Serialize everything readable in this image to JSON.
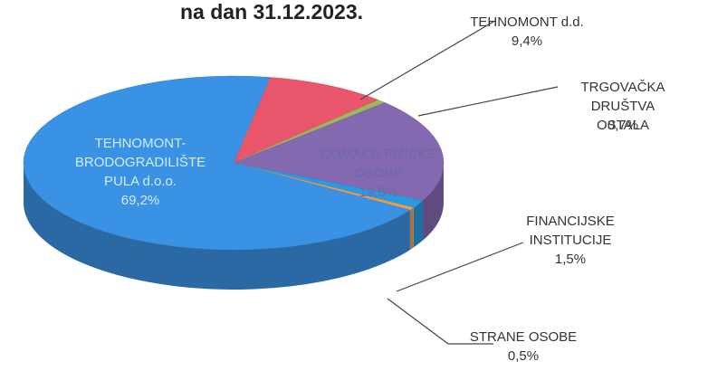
{
  "chart_data": {
    "type": "pie",
    "title": "na dan 31.12.2023.",
    "categories": [
      "TEHNOMONT d.d.",
      "TRGOVAČKA\nDRUŠTVA OSTALA",
      "DOMAĆE FIZIČKE\nOSOBE",
      "FINANCIJSKE\nINSTITUCIJE",
      "STRANE OSOBE",
      "TEHNOMONT-\nBRODOGRADILIŠTE\nPULA d.o.o."
    ],
    "values": [
      9.4,
      0.7,
      19.5,
      1.5,
      0.5,
      69.2
    ],
    "value_labels": [
      "9,4%",
      "0,7%",
      "19,5%",
      "1,5%",
      "0,5%",
      "69,2%"
    ],
    "colors": [
      "#e9566c",
      "#9bbb59",
      "#8468b0",
      "#2b9be0",
      "#f09a50",
      "#3a92e4"
    ]
  }
}
